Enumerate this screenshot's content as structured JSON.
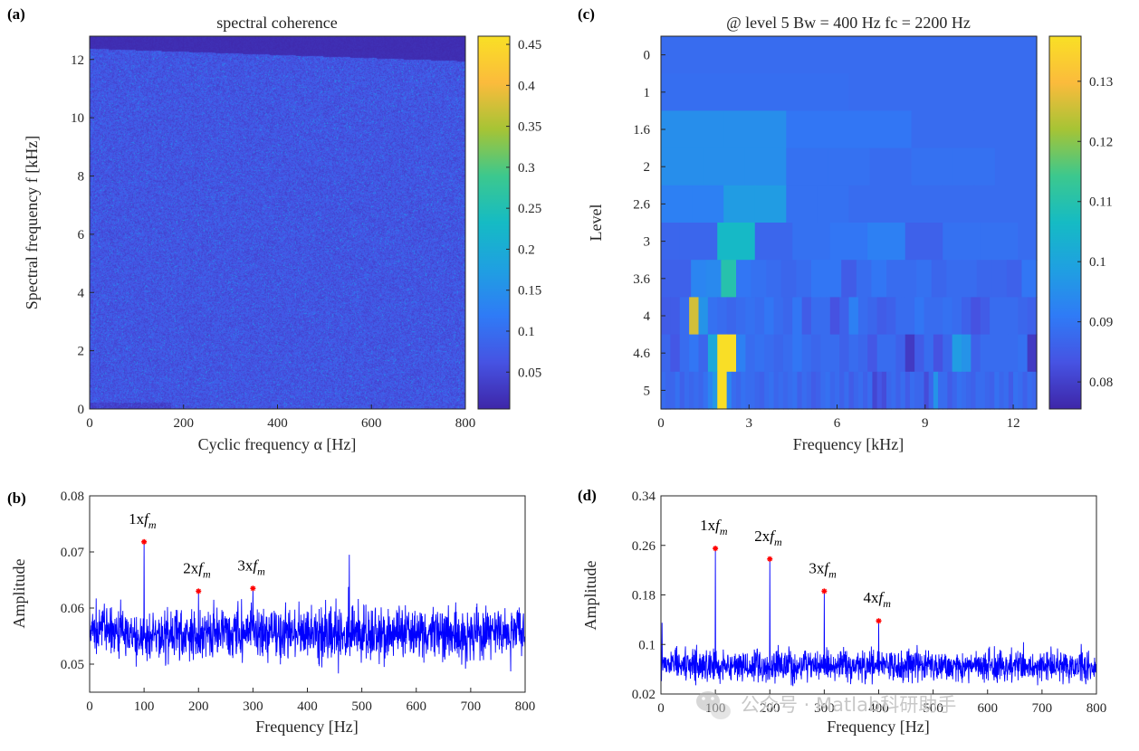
{
  "colors": {
    "parula_stops": [
      "#3e26a8",
      "#4653e3",
      "#2f7bf6",
      "#1fa0e1",
      "#15bbc4",
      "#3cc88e",
      "#a6c435",
      "#fbbb3c",
      "#f9e025"
    ],
    "trace": "#0000ff",
    "marker": "#ff0000"
  },
  "watermark": {
    "icon": "wechat-icon",
    "text": "公众号 · Matlab科研助手"
  },
  "chart_data": [
    {
      "panel_label": "(a)",
      "type": "heatmap",
      "title": "spectral coherence",
      "xlabel": "Cyclic frequency α [Hz]",
      "ylabel": "Spectral frequency f [kHz]",
      "xlim": [
        0,
        800
      ],
      "ylim": [
        0,
        12.8
      ],
      "xticks": [
        0,
        200,
        400,
        600,
        800
      ],
      "yticks": [
        0,
        2,
        4,
        6,
        8,
        10,
        12
      ],
      "colorbar": {
        "min": 0.005,
        "max": 0.46,
        "ticks": [
          0.05,
          0.1,
          0.15,
          0.2,
          0.25,
          0.3,
          0.35,
          0.4,
          0.45
        ],
        "tick_labels": [
          "0.05",
          "0.1",
          "0.15",
          "0.2",
          "0.25",
          "0.3",
          "0.35",
          "0.4",
          "0.45"
        ]
      },
      "field": {
        "typical_value": 0.07,
        "max_value": 0.16,
        "upper_band_start_kHz": 12.2,
        "upper_band_value": 0.01
      }
    },
    {
      "panel_label": "(b)",
      "type": "line",
      "title": "",
      "xlabel": "Frequency [Hz]",
      "ylabel": "Amplitude",
      "xlim": [
        0,
        800
      ],
      "ylim": [
        0.045,
        0.08
      ],
      "xticks": [
        0,
        100,
        200,
        300,
        400,
        500,
        600,
        700,
        800
      ],
      "yticks": [
        0.05,
        0.06,
        0.07,
        0.08
      ],
      "ytick_labels": [
        "0.05",
        "0.06",
        "0.07",
        "0.08"
      ],
      "noise": {
        "mean": 0.0555,
        "spread": 0.0035
      },
      "spikes": [
        {
          "x": 477,
          "y": 0.0695
        },
        {
          "x": 580,
          "y": 0.0605
        }
      ],
      "peaks": [
        {
          "x": 100,
          "y": 0.0718,
          "label": "1x",
          "sub": "f",
          "subsub": "m"
        },
        {
          "x": 200,
          "y": 0.063,
          "label": "2x",
          "sub": "f",
          "subsub": "m"
        },
        {
          "x": 300,
          "y": 0.0635,
          "label": "3x",
          "sub": "f",
          "subsub": "m"
        }
      ]
    },
    {
      "panel_label": "(c)",
      "type": "heatmap",
      "title": "@ level 5  Bw = 400 Hz   fc = 2200 Hz",
      "xlabel": "Frequency [kHz]",
      "ylabel": "Level",
      "xlim": [
        0,
        12.8
      ],
      "xticks": [
        0,
        3,
        6,
        9,
        12
      ],
      "levels": [
        "0",
        "1",
        "1.6",
        "2",
        "2.6",
        "3",
        "3.6",
        "4",
        "4.6",
        "5"
      ],
      "colorbar": {
        "min": 0.0755,
        "max": 0.1375,
        "ticks": [
          0.08,
          0.09,
          0.1,
          0.11,
          0.12,
          0.13
        ],
        "tick_labels": [
          "0.08",
          "0.09",
          "0.1",
          "0.11",
          "0.12",
          "0.13"
        ]
      },
      "rows": [
        [
          0.088
        ],
        [
          0.0885,
          0.088
        ],
        [
          0.095,
          0.095,
          0.09,
          0.09,
          0.088,
          0.088
        ],
        [
          0.095,
          0.095,
          0.095,
          0.089,
          0.089,
          0.088,
          0.089,
          0.089,
          0.088
        ],
        [
          0.092,
          0.092,
          0.098,
          0.098,
          0.089,
          0.089,
          0.088,
          0.088,
          0.088,
          0.088,
          0.088,
          0.088
        ],
        [
          0.087,
          0.087,
          0.087,
          0.106,
          0.106,
          0.087,
          0.087,
          0.089,
          0.089,
          0.09,
          0.09,
          0.092,
          0.092,
          0.086,
          0.086,
          0.089,
          0.089,
          0.089,
          0.089,
          0.088
        ],
        [
          0.086,
          0.086,
          0.093,
          0.094,
          0.11,
          0.09,
          0.089,
          0.088,
          0.087,
          0.088,
          0.09,
          0.09,
          0.085,
          0.088,
          0.09,
          0.088,
          0.088,
          0.089,
          0.087,
          0.088,
          0.088,
          0.087,
          0.087,
          0.086,
          0.09
        ],
        [
          0.085,
          0.085,
          0.088,
          0.126,
          0.096,
          0.089,
          0.088,
          0.087,
          0.088,
          0.089,
          0.088,
          0.09,
          0.088,
          0.087,
          0.09,
          0.085,
          0.088,
          0.088,
          0.083,
          0.086,
          0.092,
          0.088,
          0.087,
          0.085,
          0.086,
          0.088,
          0.088,
          0.09,
          0.088,
          0.088,
          0.089,
          0.088,
          0.086,
          0.083,
          0.085,
          0.088,
          0.088,
          0.088,
          0.087,
          0.086
        ],
        [
          0.087,
          0.084,
          0.088,
          0.09,
          0.087,
          0.101,
          0.137,
          0.137,
          0.092,
          0.088,
          0.089,
          0.088,
          0.087,
          0.088,
          0.09,
          0.088,
          0.087,
          0.088,
          0.088,
          0.086,
          0.088,
          0.087,
          0.084,
          0.088,
          0.088,
          0.086,
          0.079,
          0.085,
          0.088,
          0.083,
          0.087,
          0.098,
          0.096,
          0.086,
          0.088,
          0.088,
          0.088,
          0.088,
          0.089,
          0.079
        ],
        [
          0.088,
          0.087,
          0.087,
          0.089,
          0.086,
          0.088,
          0.087,
          0.088,
          0.087,
          0.089,
          0.093,
          0.097,
          0.137,
          0.137,
          0.093,
          0.088,
          0.087,
          0.089,
          0.088,
          0.088,
          0.087,
          0.086,
          0.088,
          0.089,
          0.087,
          0.088,
          0.087,
          0.088,
          0.089,
          0.086,
          0.088,
          0.087,
          0.085,
          0.086,
          0.088,
          0.089,
          0.087,
          0.088,
          0.086,
          0.088,
          0.085,
          0.087,
          0.088,
          0.086,
          0.088,
          0.081,
          0.084,
          0.082,
          0.087,
          0.088,
          0.086,
          0.088,
          0.085,
          0.088,
          0.087,
          0.087,
          0.082,
          0.087,
          0.096,
          0.088,
          0.088,
          0.085,
          0.087,
          0.089,
          0.088,
          0.087,
          0.086,
          0.088,
          0.088,
          0.087,
          0.086,
          0.089,
          0.087,
          0.088,
          0.085,
          0.089,
          0.088,
          0.086,
          0.088,
          0.087
        ]
      ]
    },
    {
      "panel_label": "(d)",
      "type": "line",
      "title": "",
      "xlabel": "Frequency [Hz]",
      "ylabel": "Amplitude",
      "xlim": [
        0,
        800
      ],
      "ylim": [
        0.02,
        0.34
      ],
      "xticks": [
        0,
        100,
        200,
        300,
        400,
        500,
        600,
        700,
        800
      ],
      "yticks": [
        0.02,
        0.1,
        0.18,
        0.26,
        0.34
      ],
      "ytick_labels": [
        "0.02",
        "0.1",
        "0.18",
        "0.26",
        "0.34"
      ],
      "noise": {
        "mean": 0.065,
        "spread": 0.02
      },
      "spikes": [
        {
          "x": 2,
          "y": 0.135
        }
      ],
      "peaks": [
        {
          "x": 100,
          "y": 0.255,
          "label": "1x",
          "sub": "f",
          "subsub": "m"
        },
        {
          "x": 200,
          "y": 0.238,
          "label": "2x",
          "sub": "f",
          "subsub": "m"
        },
        {
          "x": 300,
          "y": 0.186,
          "label": "3x",
          "sub": "f",
          "subsub": "m"
        },
        {
          "x": 400,
          "y": 0.138,
          "label": "4x",
          "sub": "f",
          "subsub": "m"
        }
      ]
    }
  ]
}
